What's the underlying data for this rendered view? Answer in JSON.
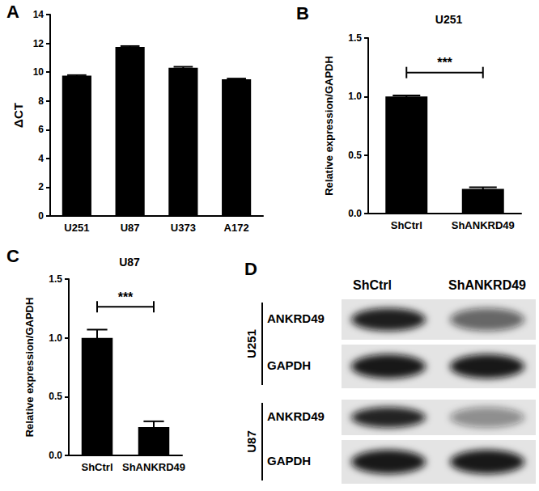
{
  "chart_data": [
    {
      "type": "bar",
      "panel": "A",
      "y_label": "ΔCT",
      "categories": [
        "U251",
        "U87",
        "U373",
        "A172"
      ],
      "values": [
        9.75,
        11.75,
        10.3,
        9.5
      ],
      "errors": [
        0.04,
        0.06,
        0.07,
        0.05
      ],
      "color": "#000000",
      "ylim": [
        0,
        14
      ],
      "yticks": [
        0,
        2,
        4,
        6,
        8,
        10,
        12,
        14
      ],
      "grid": false
    },
    {
      "type": "bar",
      "panel": "B",
      "title": "U251",
      "y_label": "Relative expression/GAPDH",
      "categories": [
        "ShCtrl",
        "ShANKRD49"
      ],
      "values": [
        1.0,
        0.21
      ],
      "errors": [
        0.01,
        0.015
      ],
      "color": "#000000",
      "ylim": [
        0,
        1.5
      ],
      "yticks": [
        {
          "value": 0,
          "label": "0.0"
        },
        {
          "value": 0.5,
          "label": "0.5"
        },
        {
          "value": 1,
          "label": "1.0"
        },
        {
          "value": 1.5,
          "label": "1.5"
        }
      ],
      "grid": false,
      "annotations": [
        {
          "text": "***",
          "from": "ShCtrl",
          "to": "ShANKRD49"
        }
      ]
    },
    {
      "type": "bar",
      "panel": "C",
      "title": "U87",
      "y_label": "Relative expression/GAPDH",
      "categories": [
        "ShCtrl",
        "ShANKRD49"
      ],
      "values": [
        1.0,
        0.24
      ],
      "errors": [
        0.07,
        0.05
      ],
      "color": "#000000",
      "ylim": [
        0,
        1.5
      ],
      "yticks": [
        {
          "value": 0,
          "label": "0.0"
        },
        {
          "value": 0.5,
          "label": "0.5"
        },
        {
          "value": 1,
          "label": "1.0"
        },
        {
          "value": 1.5,
          "label": "1.5"
        }
      ],
      "grid": false,
      "annotations": [
        {
          "text": "***",
          "from": "ShCtrl",
          "to": "ShANKRD49"
        }
      ]
    }
  ],
  "blot": {
    "panel": "D",
    "lanes": [
      "ShCtrl",
      "ShANKRD49"
    ],
    "groups": [
      {
        "cell_line": "U251",
        "rows": [
          "ANKRD49",
          "GAPDH"
        ]
      },
      {
        "cell_line": "U87",
        "rows": [
          "ANKRD49",
          "GAPDH"
        ]
      }
    ]
  }
}
